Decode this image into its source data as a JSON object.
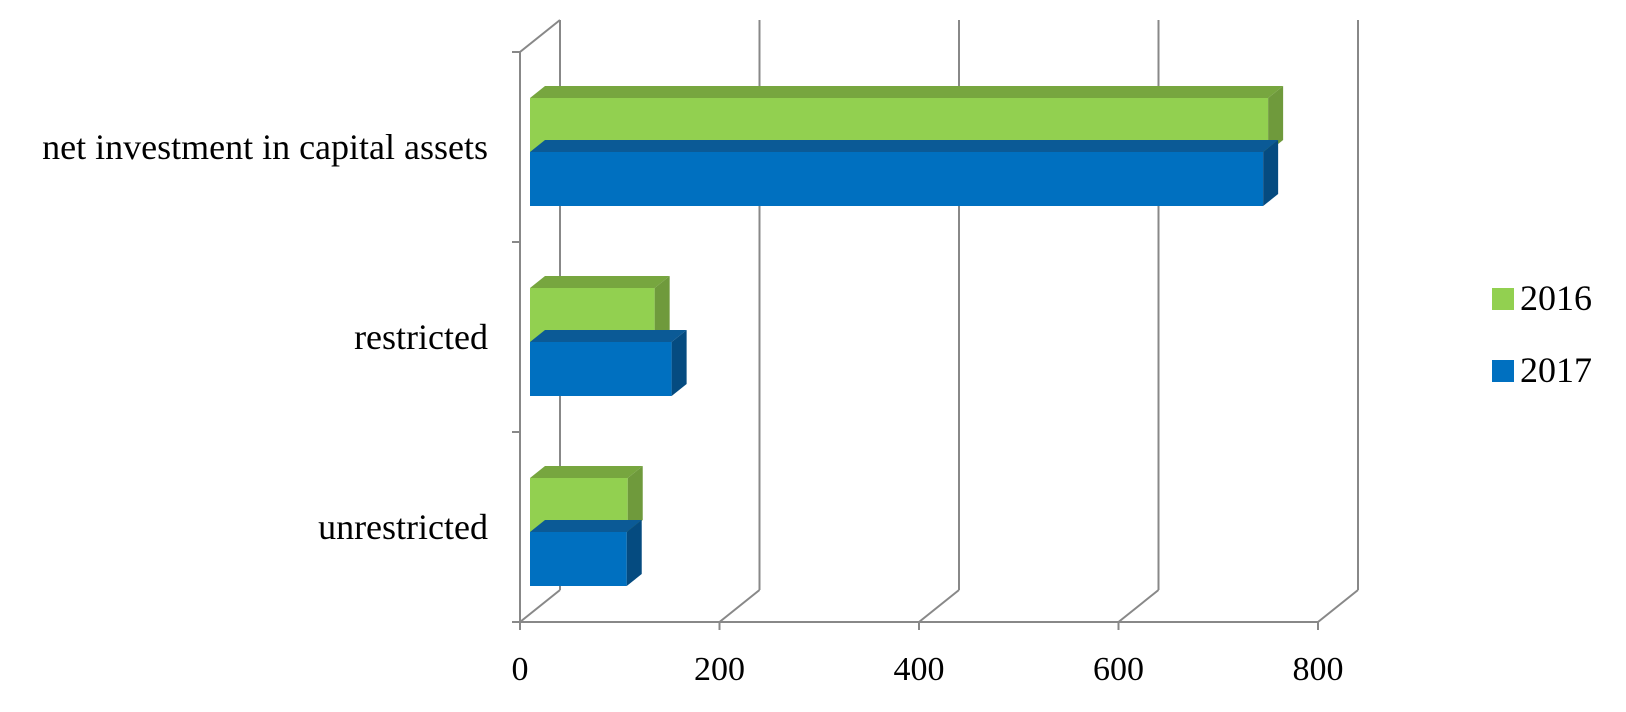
{
  "chart_data": {
    "type": "bar",
    "orientation": "horizontal",
    "three_d": true,
    "categories": [
      "net investment in capital assets",
      "restricted",
      "unrestricted"
    ],
    "series": [
      {
        "name": "2016",
        "values": [
          750,
          135,
          108
        ]
      },
      {
        "name": "2017",
        "values": [
          745,
          152,
          107
        ]
      }
    ],
    "xlim": [
      0,
      800
    ],
    "x_ticks": [
      "0",
      "200",
      "400",
      "600",
      "800"
    ],
    "grid": true,
    "legend_position": "right",
    "colors": {
      "2016": "#92d050",
      "2016_side": "#6f9a3c",
      "2016_top": "#77a63f",
      "2017": "#0070c0",
      "2017_side": "#054b80",
      "2017_top": "#0b5a96",
      "axis": "#888888"
    }
  }
}
